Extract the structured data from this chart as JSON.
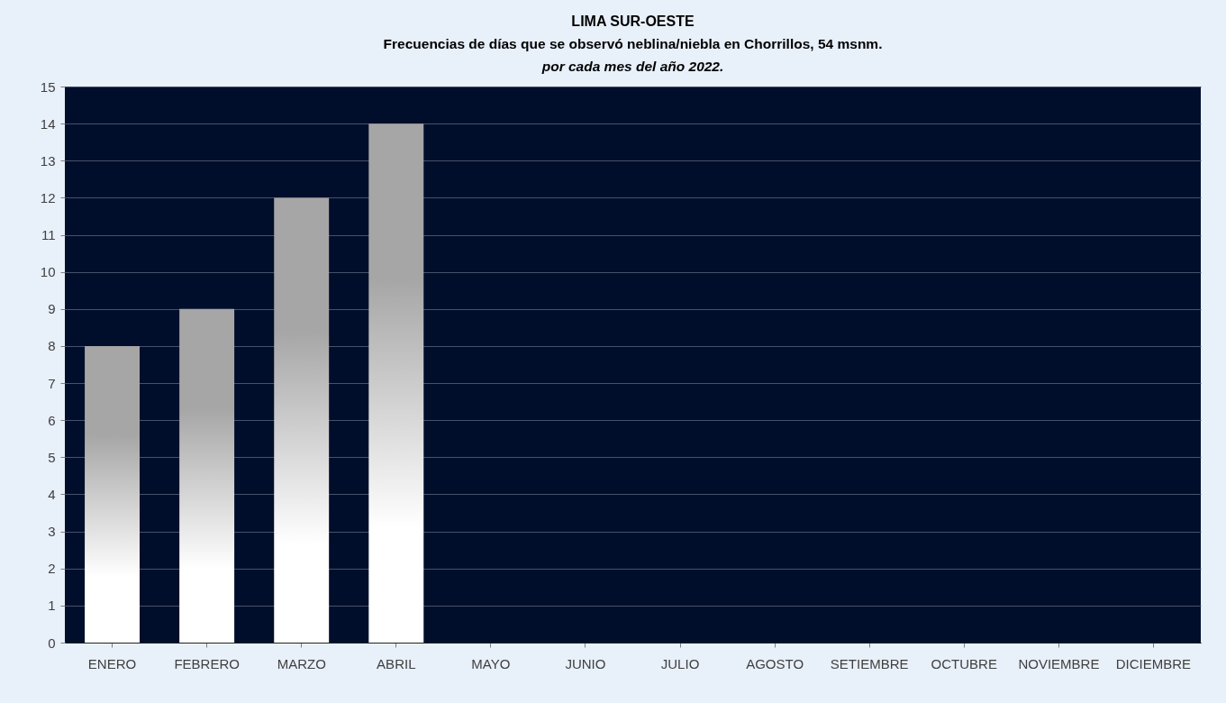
{
  "chart_data": {
    "type": "bar",
    "title": "LIMA SUR-OESTE",
    "subtitle": "Frecuencias de días que se observó neblina/niebla en Chorrillos, 54 msnm.\npor cada mes del año 2022.",
    "categories": [
      "ENERO",
      "FEBRERO",
      "MARZO",
      "ABRIL",
      "MAYO",
      "JUNIO",
      "JULIO",
      "AGOSTO",
      "SETIEMBRE",
      "OCTUBRE",
      "NOVIEMBRE",
      "DICIEMBRE"
    ],
    "values": [
      8,
      9,
      12,
      14,
      null,
      null,
      null,
      null,
      null,
      null,
      null,
      null
    ],
    "color": "#a6a6a6",
    "ylim": [
      0,
      15
    ],
    "yticks": [
      0,
      1,
      2,
      3,
      4,
      5,
      6,
      7,
      8,
      9,
      10,
      11,
      12,
      13,
      14,
      15
    ],
    "grid": "y"
  }
}
